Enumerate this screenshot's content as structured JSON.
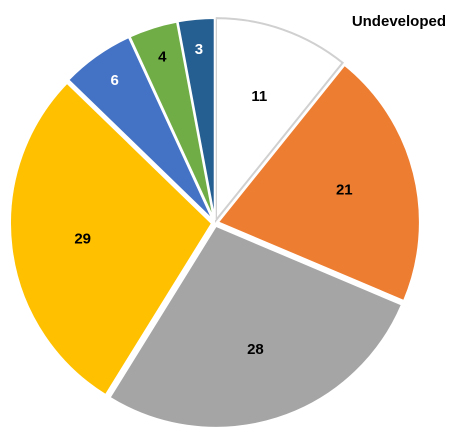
{
  "chart_data": {
    "type": "pie",
    "categories": [
      "Undeveloped",
      null,
      null,
      null,
      null,
      null,
      null
    ],
    "values": [
      11,
      21,
      28,
      29,
      6,
      4,
      3
    ],
    "colors": [
      "#ffffff",
      "#ed7d31",
      "#a5a5a5",
      "#ffc000",
      "#4472c4",
      "#70ad47",
      "#255e91"
    ],
    "start_angle": 90,
    "direction": "clockwise"
  }
}
